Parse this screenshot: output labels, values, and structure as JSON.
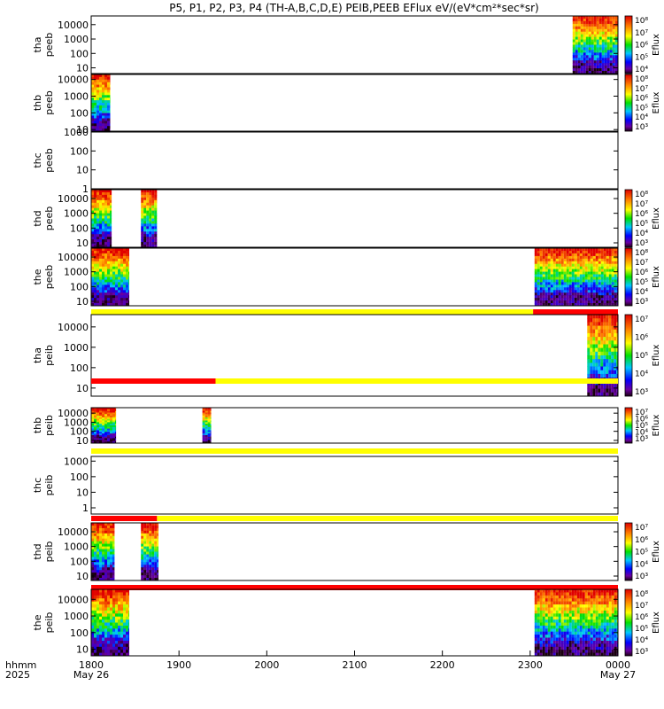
{
  "title": "P5, P1, P2, P3, P4 (TH-A,B,C,D,E) PEIB,PEEB EFlux eV/(eV*cm²*sec*sr)",
  "chart_data": {
    "type": "heatmap",
    "title": "P5, P1, P2, P3, P4 (TH-A,B,C,D,E) PEIB,PEEB EFlux eV/(eV*cm²*sec*sr)",
    "x_range": [
      "18:00",
      "24:00"
    ],
    "x_tick_labels": [
      "1800",
      "1900",
      "2000",
      "2100",
      "2200",
      "2300",
      "0000"
    ],
    "x_axis_label": "hhmm",
    "x_year_label": "2025",
    "x_date_labels": [
      "May 26",
      "May 27"
    ],
    "y_scale": "log",
    "colorbar_label": "Eflux",
    "panels": [
      {
        "probe": "tha",
        "product": "peeb",
        "ylim": [
          4,
          40000
        ],
        "y_ticks": [
          "10000",
          "1000",
          "100",
          "10"
        ],
        "colorbar": true,
        "cbar_ticks": [
          "10⁸",
          "10⁷",
          "10⁶",
          "10⁵",
          "10⁴"
        ],
        "data_intervals": [
          [
            "23:29",
            "24:00"
          ]
        ],
        "status_bar": null
      },
      {
        "probe": "thb",
        "product": "peeb",
        "ylim": [
          8,
          20000
        ],
        "y_ticks": [
          "10000",
          "1000",
          "100",
          "10"
        ],
        "colorbar": true,
        "cbar_ticks": [
          "10⁸",
          "10⁷",
          "10⁶",
          "10⁵",
          "10⁴",
          "10³"
        ],
        "data_intervals": [
          [
            "18:00",
            "18:13"
          ]
        ],
        "status_bar": null
      },
      {
        "probe": "thc",
        "product": "peeb",
        "ylim": [
          1,
          1000
        ],
        "y_ticks": [
          "1000",
          "100",
          "10",
          "1"
        ],
        "colorbar": false,
        "cbar_ticks": [],
        "data_intervals": [],
        "status_bar": null
      },
      {
        "probe": "thd",
        "product": "peeb",
        "ylim": [
          5,
          40000
        ],
        "y_ticks": [
          "10000",
          "1000",
          "100",
          "10"
        ],
        "colorbar": true,
        "cbar_ticks": [
          "10⁸",
          "10⁷",
          "10⁶",
          "10⁵",
          "10⁴",
          "10³"
        ],
        "data_intervals": [
          [
            "18:00",
            "18:14"
          ],
          [
            "18:34",
            "18:45"
          ]
        ],
        "status_bar": null
      },
      {
        "probe": "the",
        "product": "peeb",
        "ylim": [
          5,
          40000
        ],
        "y_ticks": [
          "10000",
          "1000",
          "100",
          "10"
        ],
        "colorbar": true,
        "cbar_ticks": [
          "10⁸",
          "10⁷",
          "10⁶",
          "10⁵",
          "10⁴",
          "10³"
        ],
        "data_intervals": [
          [
            "18:00",
            "18:26"
          ],
          [
            "23:03",
            "24:00"
          ]
        ],
        "status_bar": [
          [
            "yellow",
            "18:00",
            "23:02"
          ],
          [
            "red",
            "23:02",
            "24:00"
          ]
        ]
      },
      {
        "probe": "tha",
        "product": "peib",
        "ylim": [
          4,
          40000
        ],
        "y_ticks": [
          "10000",
          "1000",
          "100",
          "10"
        ],
        "colorbar": true,
        "cbar_ticks": [
          "10⁷",
          "10⁶",
          "10⁵",
          "10⁴",
          "10³"
        ],
        "data_intervals": [
          [
            "23:39",
            "24:00"
          ]
        ],
        "status_bar": [
          [
            "red",
            "18:00",
            "19:25"
          ],
          [
            "yellow",
            "19:25",
            "24:00"
          ]
        ]
      },
      {
        "probe": "thb",
        "product": "peib",
        "ylim": [
          5,
          40000
        ],
        "y_ticks": [
          "10000",
          "1000",
          "100",
          "10"
        ],
        "colorbar": true,
        "cbar_ticks": [
          "10⁷",
          "10⁶",
          "10⁵",
          "10⁴",
          "10³"
        ],
        "data_intervals": [
          [
            "18:00",
            "18:17"
          ],
          [
            "19:16",
            "19:22"
          ]
        ],
        "status_bar": [
          [
            "yellow",
            "18:00",
            "24:00"
          ]
        ]
      },
      {
        "probe": "thc",
        "product": "peib",
        "ylim": [
          0.4,
          2000
        ],
        "y_ticks": [
          "1000",
          "100",
          "10",
          "1"
        ],
        "colorbar": false,
        "cbar_ticks": [],
        "data_intervals": [],
        "status_bar": [
          [
            "red",
            "18:00",
            "18:45"
          ],
          [
            "yellow",
            "18:45",
            "24:00"
          ]
        ]
      },
      {
        "probe": "thd",
        "product": "peib",
        "ylim": [
          5,
          40000
        ],
        "y_ticks": [
          "10000",
          "1000",
          "100",
          "10"
        ],
        "colorbar": true,
        "cbar_ticks": [
          "10⁷",
          "10⁶",
          "10⁵",
          "10⁴",
          "10³"
        ],
        "data_intervals": [
          [
            "18:00",
            "18:16"
          ],
          [
            "18:34",
            "18:46"
          ]
        ],
        "status_bar": [
          [
            "red",
            "18:00",
            "24:00"
          ]
        ]
      },
      {
        "probe": "the",
        "product": "peib",
        "ylim": [
          4,
          40000
        ],
        "y_ticks": [
          "10000",
          "1000",
          "100",
          "10"
        ],
        "colorbar": true,
        "cbar_ticks": [
          "10⁸",
          "10⁷",
          "10⁶",
          "10⁵",
          "10⁴",
          "10³"
        ],
        "data_intervals": [
          [
            "18:00",
            "18:26"
          ],
          [
            "23:03",
            "24:00"
          ]
        ],
        "status_bar": null
      }
    ]
  }
}
